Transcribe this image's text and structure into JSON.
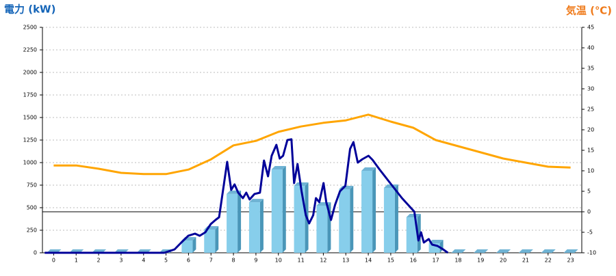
{
  "chart_data": {
    "type": "combo",
    "title": "電力 (kW)",
    "y2_title": "気温 (℃)",
    "categories": [
      "0",
      "1",
      "2",
      "3",
      "4",
      "5",
      "6",
      "7",
      "8",
      "9",
      "10",
      "11",
      "12",
      "13",
      "14",
      "15",
      "16",
      "17",
      "18",
      "19",
      "20",
      "21",
      "22",
      "23"
    ],
    "ylim": [
      0,
      2500
    ],
    "yticks": [
      0,
      250,
      500,
      750,
      1000,
      1250,
      1500,
      1750,
      2000,
      2250,
      2500
    ],
    "y2lim": [
      -10,
      45
    ],
    "y2ticks": [
      -10,
      -5,
      0,
      5,
      10,
      15,
      20,
      25,
      30,
      35,
      40,
      45
    ],
    "grid": true,
    "series": [
      {
        "type": "bar",
        "color": "#87ceeb",
        "values": [
          0,
          0,
          0,
          0,
          0,
          0,
          136,
          258,
          652,
          560,
          924,
          742,
          523,
          705,
          909,
          720,
          394,
          106,
          0,
          0,
          0,
          0,
          0,
          0
        ]
      },
      {
        "type": "line",
        "color": "#000099",
        "x": [
          -0.4,
          4.92,
          5.38,
          5.68,
          5.99,
          6.29,
          6.5,
          6.75,
          6.99,
          7.2,
          7.36,
          7.72,
          7.9,
          8.05,
          8.21,
          8.42,
          8.57,
          8.72,
          8.94,
          9.18,
          9.36,
          9.54,
          9.7,
          9.91,
          10.06,
          10.21,
          10.4,
          10.58,
          10.7,
          10.85,
          11.03,
          11.22,
          11.37,
          11.55,
          11.67,
          11.82,
          12.01,
          12.13,
          12.34,
          12.52,
          12.74,
          12.98,
          13.19,
          13.34,
          13.53,
          13.74,
          14.01,
          14.19,
          14.5,
          14.95,
          15.5,
          16.05,
          16.23,
          16.35,
          16.47,
          16.69,
          16.84,
          17.08,
          17.33,
          17.54
        ],
        "values": [
          0,
          0,
          38,
          114,
          189,
          212,
          189,
          227,
          318,
          364,
          394,
          1008,
          697,
          758,
          667,
          606,
          667,
          591,
          652,
          667,
          1023,
          848,
          1076,
          1197,
          1045,
          1076,
          1250,
          1258,
          773,
          985,
          682,
          417,
          326,
          417,
          606,
          561,
          773,
          561,
          364,
          530,
          682,
          742,
          1152,
          1227,
          1000,
          1038,
          1076,
          1030,
          924,
          780,
          606,
          455,
          136,
          227,
          114,
          152,
          91,
          76,
          38,
          0
        ]
      },
      {
        "type": "line",
        "axis": "y2",
        "color": "#ffa500",
        "values": [
          11.3,
          11.3,
          10.5,
          9.5,
          9.2,
          9.2,
          10.3,
          12.8,
          16.2,
          17.3,
          19.5,
          20.8,
          21.7,
          22.3,
          23.7,
          22,
          20.5,
          17.5,
          16,
          14.5,
          13,
          12,
          11,
          10.8
        ]
      }
    ]
  }
}
